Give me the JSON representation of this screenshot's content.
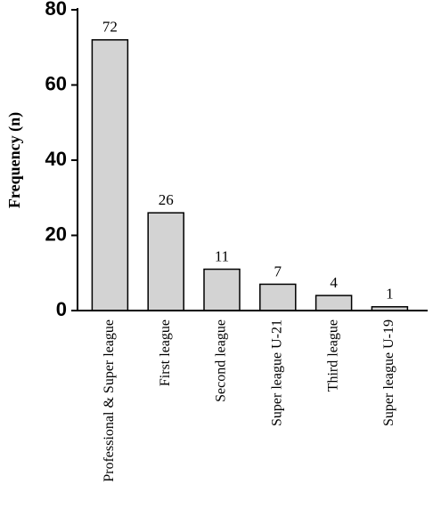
{
  "chart_data": {
    "type": "bar",
    "y_label": "Frequency (n)",
    "categories": [
      "Professional & Super league",
      "First league",
      "Second league",
      "Super league U-21",
      "Third league",
      "Super league U-19"
    ],
    "values": [
      72,
      26,
      11,
      7,
      4,
      1
    ],
    "color": "#d3d3d3",
    "ylim": [
      0,
      80
    ],
    "yticks": [
      0,
      20,
      40,
      60,
      80
    ]
  }
}
